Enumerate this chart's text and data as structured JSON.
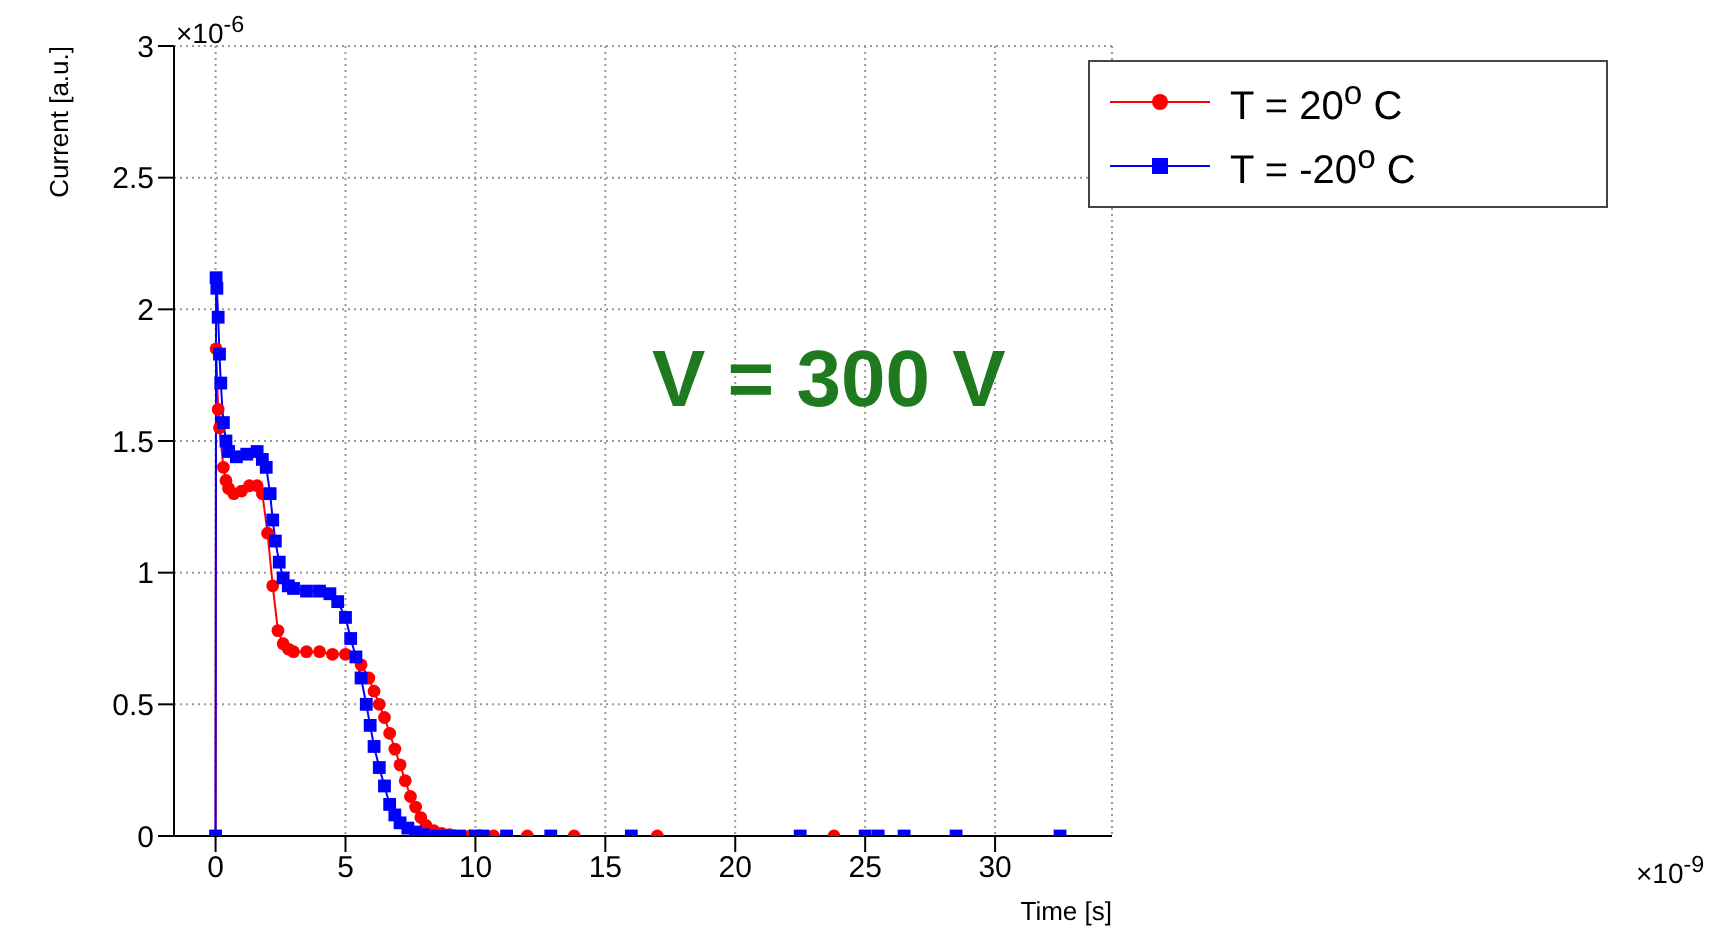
{
  "chart_data": {
    "type": "line",
    "xlabel": "Time [s]",
    "ylabel": "Current [a.u.]",
    "xlim": [
      -1.6,
      34.5
    ],
    "xticks": [
      0,
      5,
      10,
      15,
      20,
      25,
      30
    ],
    "ylim": [
      0,
      3
    ],
    "yticks": [
      0,
      0.5,
      1,
      1.5,
      2,
      2.5,
      3
    ],
    "grid": true,
    "legend": "top right",
    "line_style": "solid",
    "annotations": [
      "×10$^{-6}$",
      "×10$^{-9}$",
      "V = 300 V"
    ],
    "series": [
      {
        "name": "T = 20$^{o}$ C",
        "color": "#ff0000",
        "marker": "circle",
        "x": [
          0,
          0.02,
          0.1,
          0.15,
          0.3,
          0.4,
          0.5,
          0.7,
          1,
          1.3,
          1.6,
          1.8,
          2,
          2.2,
          2.4,
          2.6,
          2.8,
          3,
          3.5,
          4,
          4.5,
          5,
          5.6,
          5.9,
          6.1,
          6.3,
          6.5,
          6.7,
          6.9,
          7.1,
          7.3,
          7.5,
          7.7,
          7.9,
          8.1,
          8.4,
          8.7,
          9,
          9.8,
          10.7,
          12,
          13.8,
          17,
          23.8
        ],
        "values": [
          0,
          1.85,
          1.62,
          1.55,
          1.4,
          1.35,
          1.32,
          1.3,
          1.31,
          1.33,
          1.33,
          1.3,
          1.15,
          0.95,
          0.78,
          0.73,
          0.71,
          0.7,
          0.7,
          0.7,
          0.69,
          0.69,
          0.65,
          0.6,
          0.55,
          0.5,
          0.45,
          0.39,
          0.33,
          0.27,
          0.21,
          0.15,
          0.11,
          0.07,
          0.04,
          0.02,
          0.01,
          0.005,
          0,
          0,
          0,
          0,
          0,
          0
        ]
      },
      {
        "name": "T = -20$^{o}$ C",
        "color": "#0000ff",
        "marker": "square",
        "x": [
          0,
          0.02,
          0.05,
          0.1,
          0.15,
          0.2,
          0.3,
          0.4,
          0.5,
          0.8,
          1.2,
          1.6,
          1.8,
          1.95,
          2.1,
          2.2,
          2.3,
          2.45,
          2.6,
          2.8,
          3,
          3.5,
          4,
          4.4,
          4.7,
          5,
          5.2,
          5.4,
          5.6,
          5.8,
          5.95,
          6.1,
          6.3,
          6.5,
          6.7,
          6.9,
          7.1,
          7.4,
          7.7,
          8,
          8.5,
          9,
          9.4,
          10,
          10.3,
          11.2,
          12.9,
          16,
          22.5,
          25,
          25.5,
          26.5,
          28.5,
          32.5
        ],
        "values": [
          0,
          2.12,
          2.08,
          1.97,
          1.83,
          1.72,
          1.57,
          1.5,
          1.46,
          1.44,
          1.45,
          1.46,
          1.43,
          1.4,
          1.3,
          1.2,
          1.12,
          1.04,
          0.98,
          0.95,
          0.94,
          0.93,
          0.93,
          0.92,
          0.89,
          0.83,
          0.75,
          0.68,
          0.6,
          0.5,
          0.42,
          0.34,
          0.26,
          0.19,
          0.12,
          0.08,
          0.05,
          0.03,
          0.015,
          0.005,
          0,
          0,
          0,
          0,
          0,
          0,
          0,
          0,
          0,
          0,
          0,
          0,
          0,
          0
        ]
      }
    ]
  }
}
